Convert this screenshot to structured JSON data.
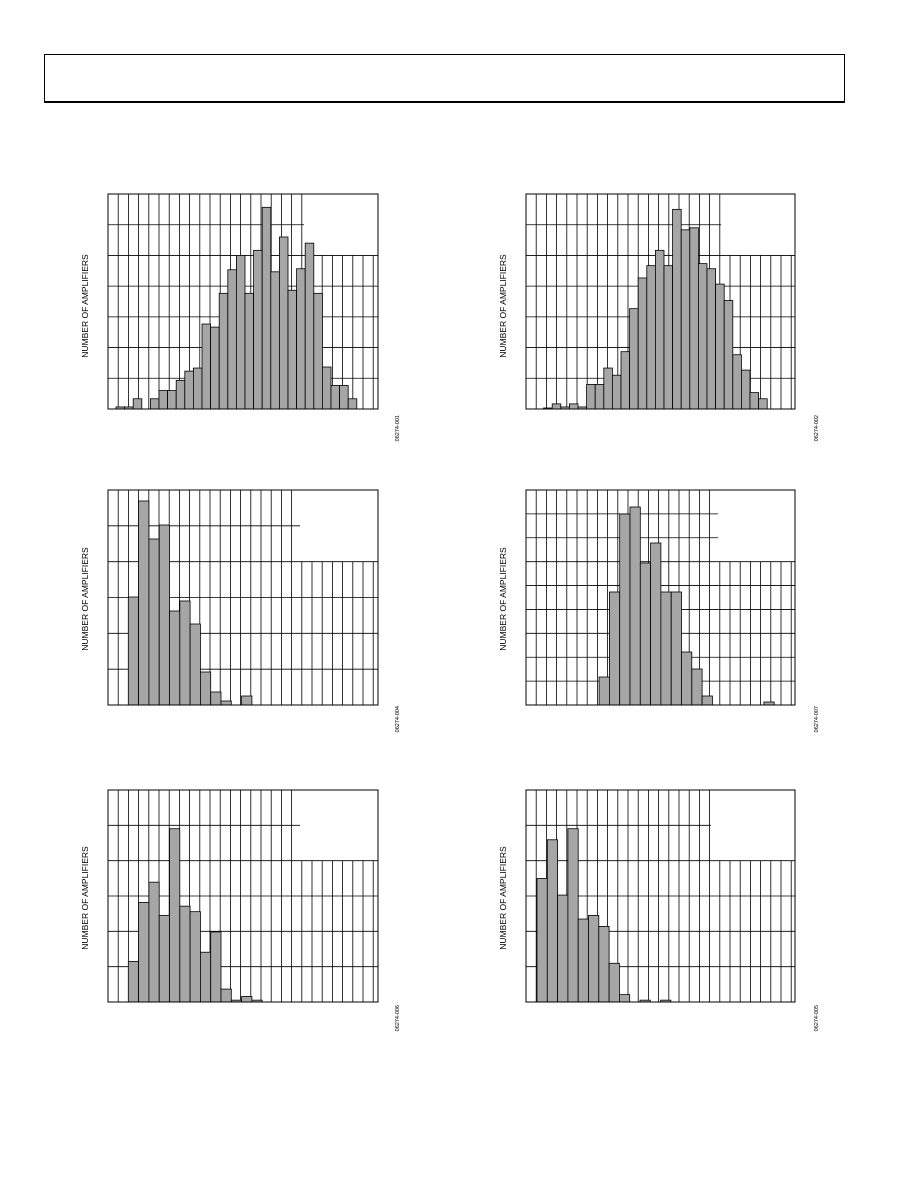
{
  "header": {
    "title": ""
  },
  "chart_data": [
    {
      "type": "bar",
      "ylabel": "NUMBER OF AMPLIFIERS",
      "figure_id": "06274-001",
      "values": [
        0.2,
        0.2,
        1,
        0,
        1,
        1.8,
        1.8,
        2.8,
        3.7,
        4,
        8.3,
        8,
        11.3,
        13.6,
        15,
        11.3,
        15.5,
        19.7,
        13.4,
        16.8,
        11.6,
        13.7,
        16.2,
        11.3,
        4.1,
        2.3,
        2.3,
        1
      ]
    },
    {
      "type": "bar",
      "ylabel": "NUMBER OF AMPLIFIERS",
      "figure_id": "06274-002",
      "values": [
        0,
        0.1,
        0.5,
        0.2,
        0.5,
        0.2,
        2.4,
        2.4,
        4,
        3.3,
        5.6,
        9.8,
        12.8,
        14,
        15.5,
        14,
        19.5,
        17.5,
        17.7,
        14.2,
        13.7,
        12.2,
        10.6,
        5.3,
        3.8,
        1.6,
        1,
        0
      ]
    },
    {
      "type": "bar",
      "ylabel": "NUMBER OF AMPLIFIERS",
      "figure_id": "06274-004",
      "values": [
        0,
        10.8,
        20.4,
        16.6,
        18,
        9.4,
        10.4,
        8.1,
        3.3,
        1.3,
        0.4,
        0,
        0.9,
        0
      ]
    },
    {
      "type": "bar",
      "ylabel": "NUMBER OF AMPLIFIERS",
      "figure_id": "06274-007",
      "values": [
        0,
        0,
        0,
        0,
        0,
        0,
        0,
        2.8,
        11.3,
        19.1,
        19.8,
        14.2,
        16.2,
        11.3,
        11.3,
        5.3,
        3.6,
        0.9,
        0,
        0,
        0,
        0,
        0,
        0.3
      ]
    },
    {
      "type": "bar",
      "ylabel": "NUMBER OF AMPLIFIERS",
      "figure_id": "06274-006",
      "values": [
        0,
        2.2,
        5.4,
        6.5,
        4.7,
        9.4,
        5.2,
        4.9,
        2.7,
        3.8,
        0.7,
        0.1,
        0.3,
        0.1
      ]
    },
    {
      "type": "bar",
      "ylabel": "NUMBER OF AMPLIFIERS",
      "figure_id": "06274-005",
      "values": [
        6.7,
        8.8,
        5.8,
        9.4,
        4.5,
        4.7,
        4.1,
        2.1,
        0.4,
        0,
        0.1,
        0,
        0.1
      ]
    }
  ]
}
